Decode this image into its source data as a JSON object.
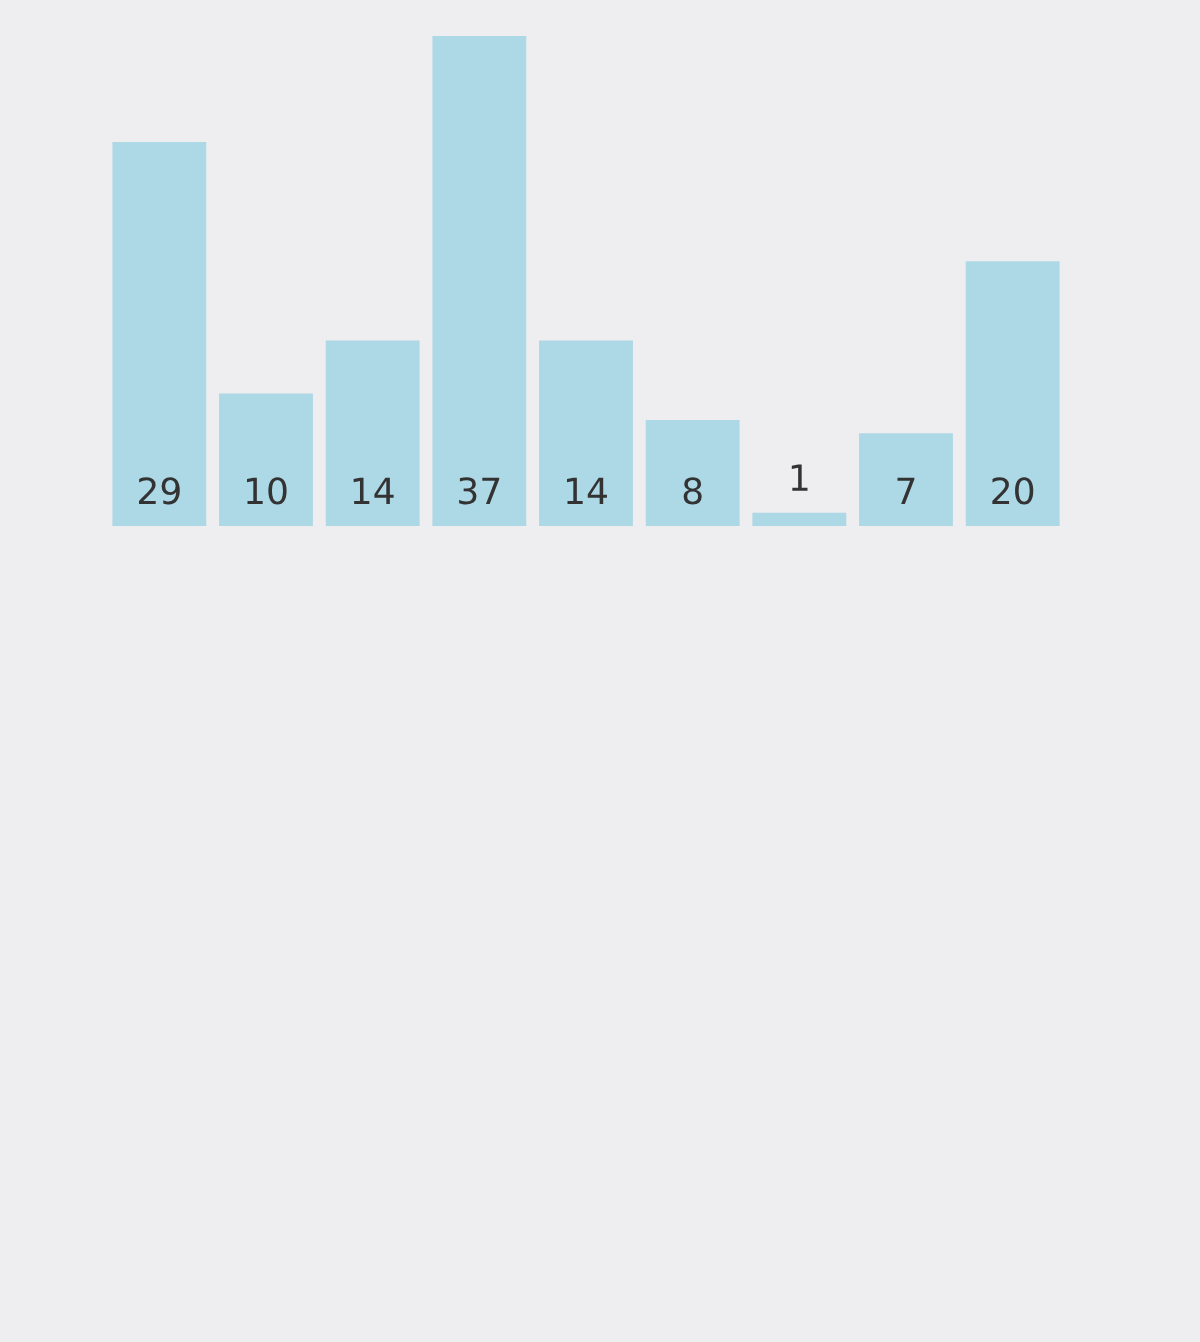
{
  "chart_data": {
    "type": "bar",
    "categories": [
      null,
      null,
      null,
      null,
      null,
      null,
      null,
      null,
      null
    ],
    "values": [
      29,
      10,
      14,
      37,
      14,
      8,
      1,
      7,
      20
    ],
    "color": "#add8e6",
    "data_labels": true,
    "tick_labels": false
  }
}
